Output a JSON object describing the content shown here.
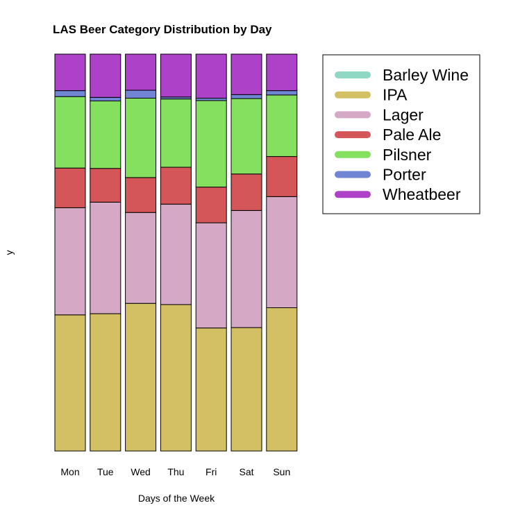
{
  "chart_data": {
    "type": "bar",
    "stacked": true,
    "title": "LAS Beer Category Distribution by Day",
    "xlabel": "Days of the Week",
    "ylabel": "y",
    "categories": [
      "Mon",
      "Tue",
      "Wed",
      "Thu",
      "Fri",
      "Sat",
      "Sun"
    ],
    "series": [
      {
        "name": "Barley Wine",
        "color": "#8fd8c3",
        "values": [
          0.0,
          0.0,
          0.0,
          0.0,
          0.0,
          0.0,
          0.0
        ]
      },
      {
        "name": "IPA",
        "color": "#d3c065",
        "values": [
          0.343,
          0.346,
          0.372,
          0.369,
          0.31,
          0.311,
          0.361
        ]
      },
      {
        "name": "Lager",
        "color": "#d5a8c5",
        "values": [
          0.27,
          0.281,
          0.229,
          0.253,
          0.265,
          0.295,
          0.28
        ]
      },
      {
        "name": "Pale Ale",
        "color": "#d45658",
        "values": [
          0.1,
          0.085,
          0.088,
          0.093,
          0.09,
          0.092,
          0.101
        ]
      },
      {
        "name": "Pilsner",
        "color": "#84e05e",
        "values": [
          0.18,
          0.17,
          0.2,
          0.172,
          0.218,
          0.19,
          0.155
        ]
      },
      {
        "name": "Porter",
        "color": "#7085d3",
        "values": [
          0.015,
          0.009,
          0.02,
          0.005,
          0.006,
          0.01,
          0.011
        ]
      },
      {
        "name": "Wheatbeer",
        "color": "#ad42c9",
        "values": [
          0.092,
          0.109,
          0.091,
          0.108,
          0.111,
          0.102,
          0.092
        ]
      }
    ],
    "legend_position": "top-right",
    "grid": false
  }
}
